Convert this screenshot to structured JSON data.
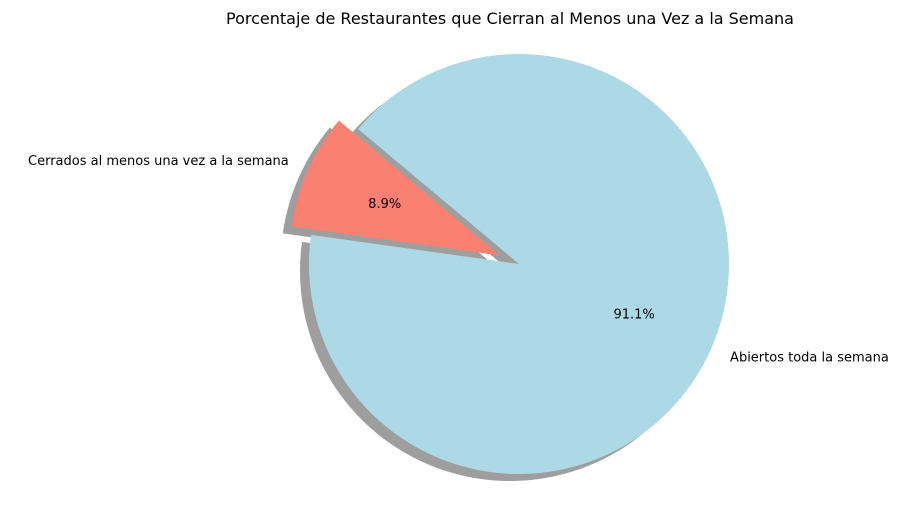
{
  "chart_data": {
    "type": "pie",
    "title": "Porcentaje de Restaurantes que Cierran al Menos una Vez a la Semana",
    "categories": [
      "Cerrados al menos una vez a la semana",
      "Abiertos toda la semana"
    ],
    "values": [
      8.9,
      91.1
    ],
    "value_labels": [
      "8.9%",
      "91.1%"
    ],
    "colors": [
      "#fa8072",
      "#add8e6"
    ],
    "shadow_color": "#9e9e9e",
    "exploded_slice": "Cerrados al menos una vez a la semana",
    "start_angle_deg": 140,
    "legend": "none"
  }
}
